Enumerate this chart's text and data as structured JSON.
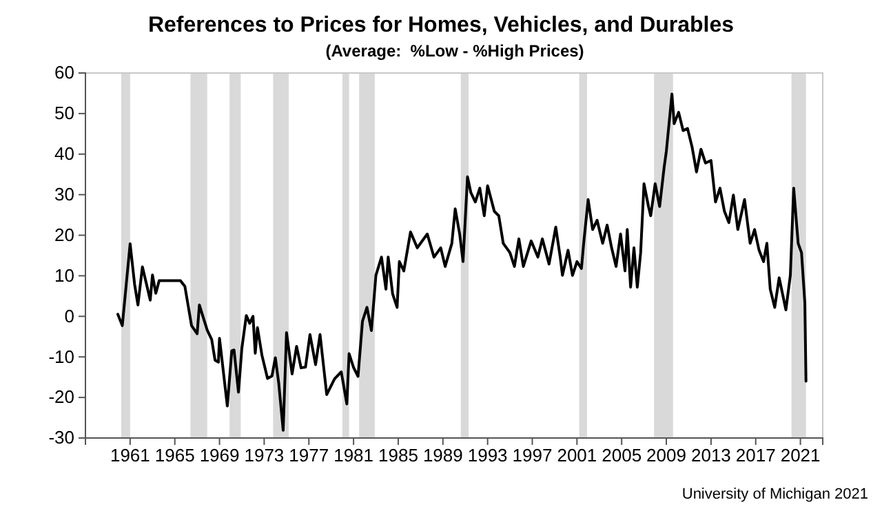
{
  "chart_data": {
    "type": "line",
    "title": "References to Prices for Homes, Vehicles, and Durables",
    "subtitle": "(Average:  %Low - %High Prices)",
    "annotations": [
      "University of Michigan 2021"
    ],
    "xlim": [
      1957,
      2023
    ],
    "xticks": [
      1961,
      1965,
      1969,
      1973,
      1977,
      1981,
      1985,
      1989,
      1993,
      1997,
      2001,
      2005,
      2009,
      2013,
      2017,
      2021
    ],
    "ylim": [
      -30,
      60
    ],
    "yticks": [
      -30,
      -20,
      -10,
      0,
      10,
      20,
      30,
      40,
      50,
      60
    ],
    "grid": false,
    "line_style": "solid",
    "marker": "none",
    "bands": [
      {
        "axis": "x",
        "from": 1960.2,
        "to": 1961.0,
        "color": "#d9d9d9"
      },
      {
        "axis": "x",
        "from": 1966.4,
        "to": 1967.9,
        "color": "#d9d9d9"
      },
      {
        "axis": "x",
        "from": 1969.9,
        "to": 1970.9,
        "color": "#d9d9d9"
      },
      {
        "axis": "x",
        "from": 1973.8,
        "to": 1975.2,
        "color": "#d9d9d9"
      },
      {
        "axis": "x",
        "from": 1980.0,
        "to": 1980.6,
        "color": "#d9d9d9"
      },
      {
        "axis": "x",
        "from": 1981.5,
        "to": 1982.9,
        "color": "#d9d9d9"
      },
      {
        "axis": "x",
        "from": 1990.6,
        "to": 1991.3,
        "color": "#d9d9d9"
      },
      {
        "axis": "x",
        "from": 2001.2,
        "to": 2001.9,
        "color": "#d9d9d9"
      },
      {
        "axis": "x",
        "from": 2007.9,
        "to": 2009.6,
        "color": "#d9d9d9"
      },
      {
        "axis": "x",
        "from": 2020.2,
        "to": 2021.5,
        "color": "#d9d9d9"
      }
    ],
    "series": [
      {
        "color": "#000000",
        "x": [
          1959.9,
          1960.3,
          1961.0,
          1961.4,
          1961.7,
          1962.1,
          1962.8,
          1963.0,
          1963.3,
          1963.6,
          1964.8,
          1965.5,
          1965.9,
          1966.5,
          1967.0,
          1967.2,
          1967.9,
          1968.3,
          1968.6,
          1968.9,
          1969.0,
          1969.7,
          1970.1,
          1970.3,
          1970.7,
          1971.0,
          1971.4,
          1971.7,
          1972.0,
          1972.2,
          1972.4,
          1972.8,
          1973.3,
          1973.7,
          1974.0,
          1974.3,
          1974.7,
          1975.0,
          1975.5,
          1975.9,
          1976.3,
          1976.7,
          1977.1,
          1977.6,
          1978.0,
          1978.6,
          1979.3,
          1979.9,
          1980.4,
          1980.6,
          1981.0,
          1981.4,
          1981.8,
          1982.2,
          1982.6,
          1983.0,
          1983.5,
          1983.9,
          1984.1,
          1984.5,
          1984.9,
          1985.1,
          1985.5,
          1986.1,
          1986.7,
          1987.6,
          1988.2,
          1988.8,
          1989.2,
          1989.8,
          1990.1,
          1990.5,
          1990.8,
          1991.2,
          1991.5,
          1991.9,
          1992.3,
          1992.7,
          1993.0,
          1993.6,
          1994.0,
          1994.4,
          1995.0,
          1995.4,
          1995.8,
          1996.2,
          1996.9,
          1997.5,
          1997.9,
          1998.5,
          1999.1,
          1999.5,
          1999.7,
          2000.2,
          2000.6,
          2001.0,
          2001.4,
          2001.6,
          2002.0,
          2002.4,
          2002.8,
          2003.3,
          2003.7,
          2004.1,
          2004.5,
          2004.9,
          2005.3,
          2005.5,
          2005.8,
          2006.1,
          2006.4,
          2006.7,
          2007.0,
          2007.4,
          2007.6,
          2008.0,
          2008.4,
          2008.8,
          2009.0,
          2009.5,
          2009.7,
          2010.1,
          2010.5,
          2010.9,
          2011.3,
          2011.7,
          2012.1,
          2012.5,
          2013.0,
          2013.4,
          2013.8,
          2014.2,
          2014.6,
          2015.0,
          2015.4,
          2016.0,
          2016.5,
          2016.9,
          2017.3,
          2017.7,
          2018.0,
          2018.3,
          2018.7,
          2019.1,
          2019.7,
          2020.1,
          2020.4,
          2020.8,
          2021.1,
          2021.4,
          2021.5
        ],
        "values": [
          0.5,
          -2.3,
          17.9,
          7.9,
          2.8,
          12.2,
          4,
          10.2,
          5.7,
          8.8,
          8.8,
          8.8,
          7.4,
          -2.3,
          -4.3,
          2.8,
          -3.4,
          -5.7,
          -10.8,
          -11.3,
          -5.4,
          -22.1,
          -8.5,
          -8.3,
          -18.7,
          -7.9,
          0.2,
          -1.7,
          0,
          -9.1,
          -2.8,
          -9.6,
          -15.3,
          -14.7,
          -10.2,
          -16.4,
          -28.1,
          -4,
          -14.2,
          -7.4,
          -12.7,
          -12.5,
          -4.5,
          -11.9,
          -4.5,
          -19.3,
          -15.4,
          -13.7,
          -21.6,
          -9.2,
          -12.6,
          -14.8,
          -1.2,
          2.2,
          -3.5,
          10.1,
          14.6,
          6.7,
          14.6,
          5.5,
          2.2,
          13.5,
          11.2,
          20.8,
          16.9,
          20.3,
          14.6,
          16.9,
          12.3,
          18,
          26.5,
          20.3,
          13.5,
          34.4,
          30.5,
          28.2,
          31.6,
          24.8,
          32.2,
          25.9,
          24.8,
          18,
          15.7,
          12.3,
          19.1,
          12.3,
          18.6,
          14.6,
          19.1,
          12.9,
          22,
          14.6,
          10.1,
          16.3,
          10.1,
          13.5,
          11.8,
          18,
          28.8,
          21.4,
          23.7,
          18,
          22.5,
          16.9,
          12.3,
          20.3,
          11.2,
          21.4,
          7.2,
          16.9,
          7.2,
          15.7,
          32.7,
          27.1,
          24.8,
          32.7,
          27.1,
          36.7,
          40.7,
          54.8,
          47.5,
          50.3,
          45.8,
          46.3,
          41.8,
          35.6,
          41.2,
          37.8,
          38.4,
          28.2,
          31.6,
          25.9,
          23.1,
          29.9,
          21.4,
          28.8,
          18,
          21.4,
          16.3,
          13.5,
          18,
          6.7,
          2.2,
          9.5,
          1.6,
          10.1,
          31.6,
          18,
          15.7,
          3.3,
          -16
        ]
      }
    ]
  }
}
